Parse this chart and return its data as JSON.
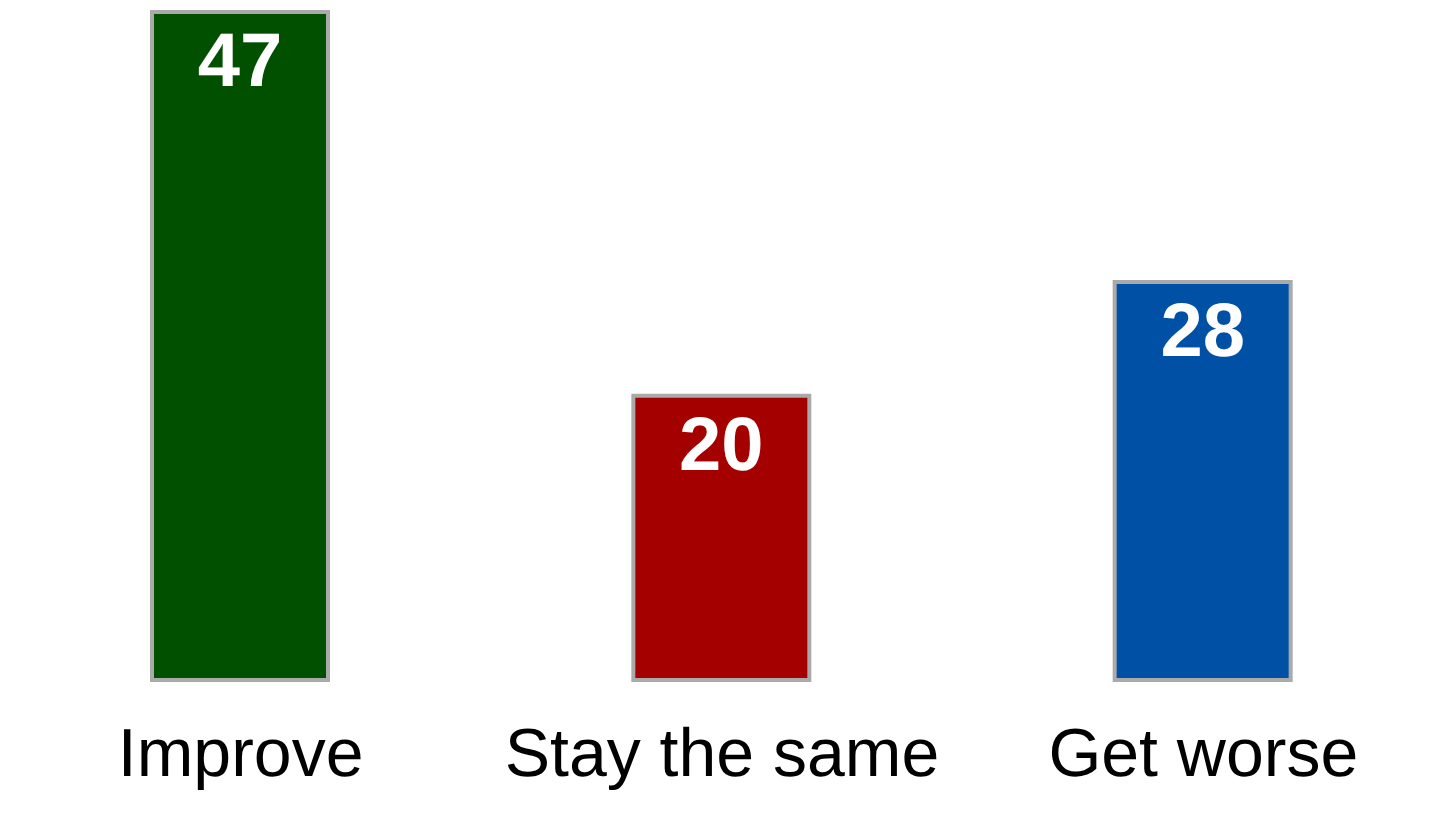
{
  "chart_data": {
    "type": "bar",
    "categories": [
      "Improve",
      "Stay the same",
      "Get worse"
    ],
    "values": [
      47,
      20,
      28
    ],
    "colors": [
      "#005000",
      "#a50000",
      "#0050a5"
    ],
    "data_labels": true
  }
}
